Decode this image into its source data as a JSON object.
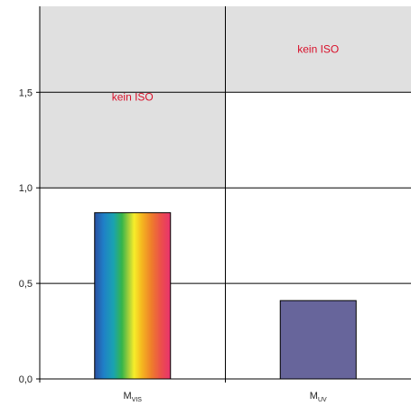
{
  "chart_data": {
    "type": "bar",
    "categories": [
      {
        "main": "M",
        "sub": "VIS"
      },
      {
        "main": "M",
        "sub": "UV"
      }
    ],
    "values": [
      0.87,
      0.41
    ],
    "bar_fills": [
      "spectrum",
      "#67659b"
    ],
    "ylim": [
      0,
      1.95
    ],
    "yticks": [
      {
        "value": 0.0,
        "label": "0,0"
      },
      {
        "value": 0.5,
        "label": "0,5"
      },
      {
        "value": 1.0,
        "label": "1,0"
      },
      {
        "value": 1.5,
        "label": "1,5"
      }
    ],
    "grid": true,
    "non_iso_regions": [
      {
        "category_index": 0,
        "from": 1.0,
        "to": 1.95,
        "label": "kein ISO"
      },
      {
        "category_index": 1,
        "from": 1.5,
        "to": 1.95,
        "label": "kein ISO"
      }
    ],
    "non_iso_fill": "#e0e0e0",
    "annotation_color": "#d8102a"
  }
}
